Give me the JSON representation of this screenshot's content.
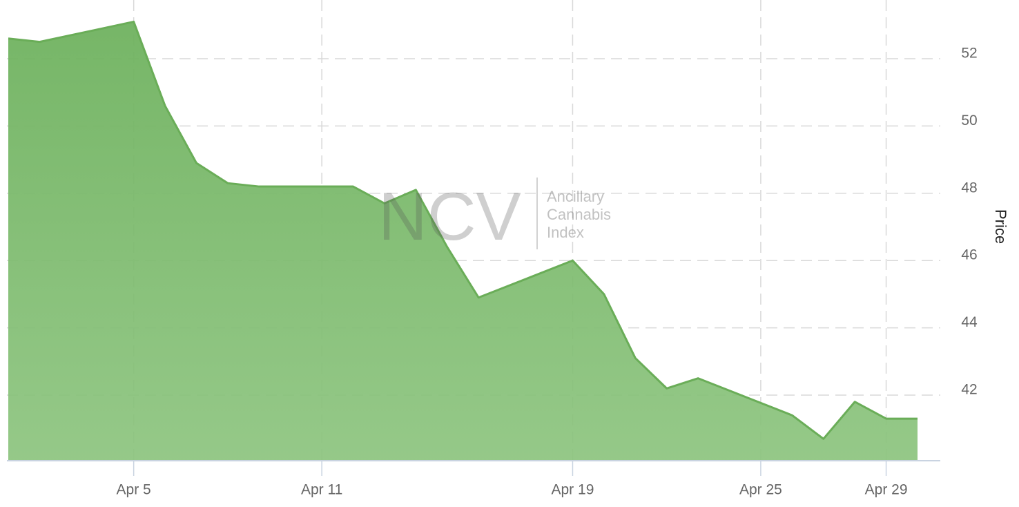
{
  "chart_data": {
    "type": "area",
    "title": "",
    "xlabel": "",
    "ylabel": "Price",
    "ylim": [
      40,
      53.5
    ],
    "y_ticks": [
      42,
      44,
      46,
      48,
      50,
      52
    ],
    "x_ticks": [
      "Apr 5",
      "Apr 11",
      "Apr 19",
      "Apr 25",
      "Apr 29"
    ],
    "grid": true,
    "y_axis_side": "right",
    "fill_color": "#7ab86a",
    "line_color": "#6aad58",
    "watermark": {
      "logo": "NCV",
      "lines": [
        "Ancillary",
        "Cannabis",
        "Index"
      ]
    },
    "series": [
      {
        "x": [
          "2021-04-01",
          "2021-04-02",
          "2021-04-05",
          "2021-04-06",
          "2021-04-07",
          "2021-04-08",
          "2021-04-09",
          "2021-04-12",
          "2021-04-13",
          "2021-04-14",
          "2021-04-15",
          "2021-04-16",
          "2021-04-19",
          "2021-04-20",
          "2021-04-21",
          "2021-04-22",
          "2021-04-23",
          "2021-04-26",
          "2021-04-27",
          "2021-04-28",
          "2021-04-29",
          "2021-04-30"
        ],
        "values": [
          52.6,
          52.5,
          53.1,
          50.6,
          48.9,
          48.3,
          48.2,
          48.2,
          47.7,
          48.1,
          46.4,
          44.9,
          46.0,
          45.0,
          43.1,
          42.2,
          42.5,
          41.4,
          40.7,
          41.8,
          41.3,
          41.3
        ]
      }
    ]
  }
}
